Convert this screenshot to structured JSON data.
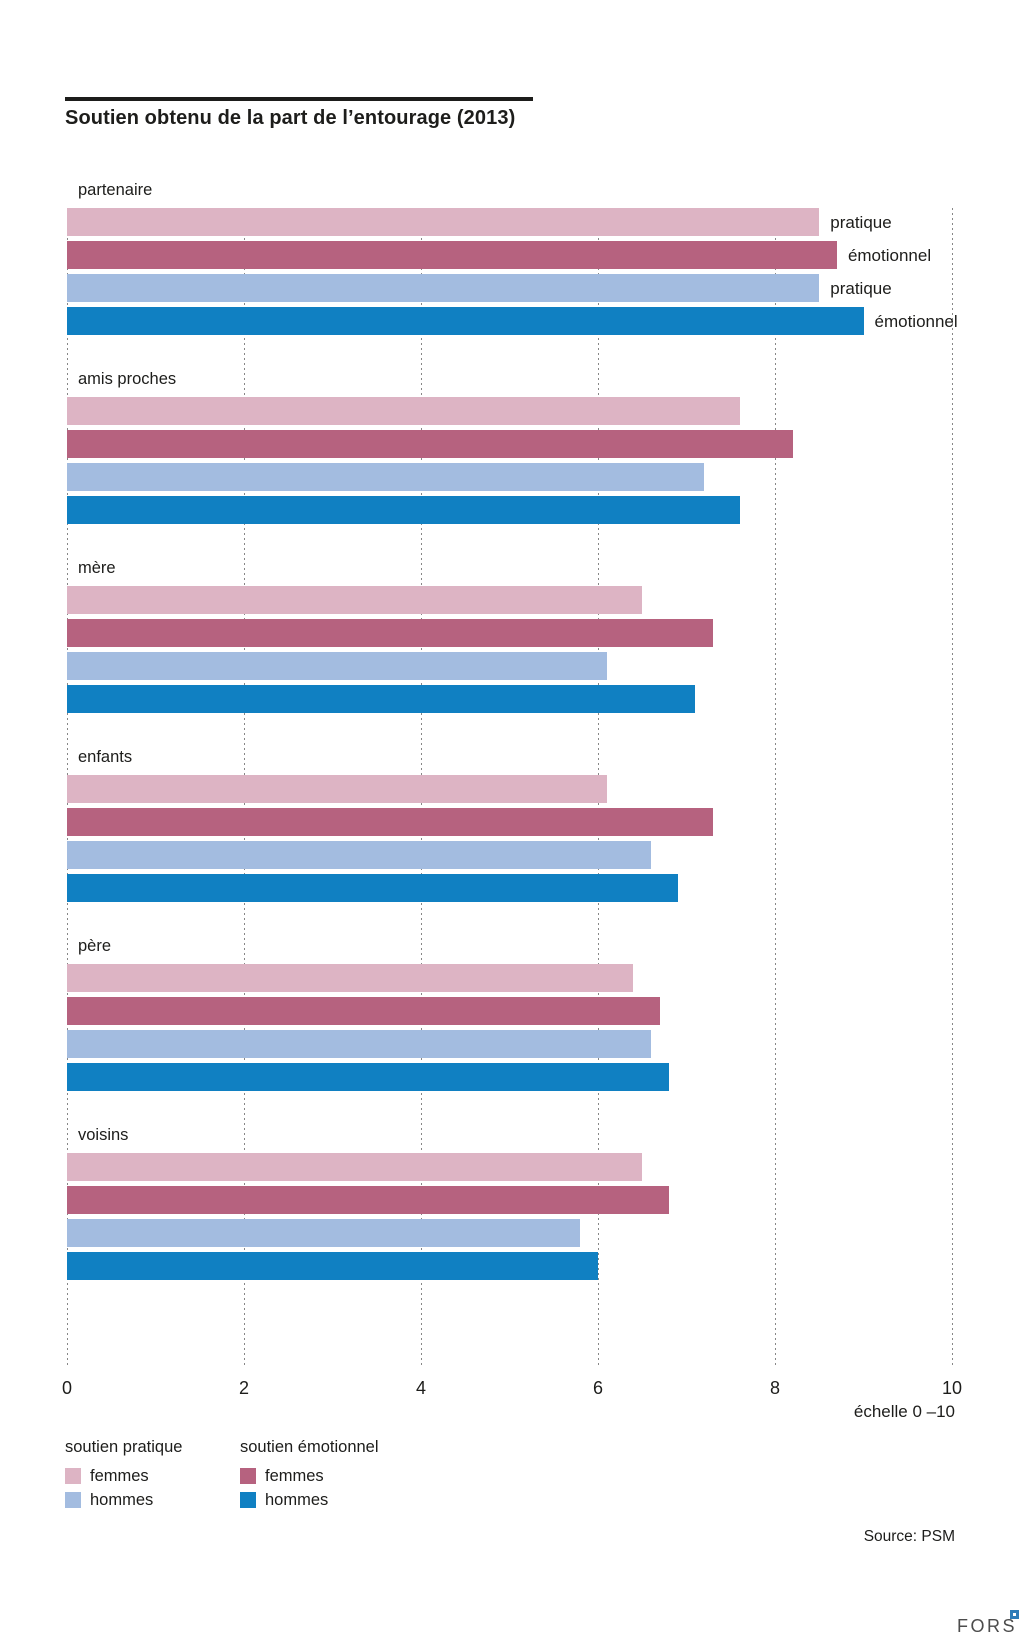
{
  "title": "Soutien obtenu de la part de l’entourage (2013)",
  "chart_data": {
    "type": "bar",
    "orientation": "horizontal",
    "categories": [
      "partenaire",
      "amis proches",
      "mère",
      "enfants",
      "père",
      "voisins"
    ],
    "series": [
      {
        "name": "soutien pratique femmes",
        "color": "#ddb4c4",
        "values": [
          8.5,
          7.6,
          6.5,
          6.1,
          6.4,
          6.5
        ]
      },
      {
        "name": "soutien émotionnel femmes",
        "color": "#b6627f",
        "values": [
          8.7,
          8.2,
          7.3,
          7.3,
          6.7,
          6.8
        ]
      },
      {
        "name": "soutien pratique hommes",
        "color": "#a3bce0",
        "values": [
          8.5,
          7.2,
          6.1,
          6.6,
          6.6,
          5.8
        ]
      },
      {
        "name": "soutien émotionnel hommes",
        "color": "#1080c2",
        "values": [
          9.0,
          7.6,
          7.1,
          6.9,
          6.8,
          6.0
        ]
      }
    ],
    "first_group_bar_labels": [
      "pratique",
      "émotionnel",
      "pratique",
      "émotionnel"
    ],
    "xlim": [
      0,
      10
    ],
    "x_ticks": [
      0,
      2,
      4,
      6,
      8,
      10
    ],
    "grid": "dotted vertical",
    "legend_position": "bottom-left"
  },
  "axis": {
    "scale_label": "échelle 0 –10"
  },
  "legend": {
    "col1_header": "soutien pratique",
    "col2_header": "soutien émotionnel",
    "femmes_label": "femmes",
    "hommes_label": "hommes"
  },
  "source": "Source: PSM",
  "logo_text": "FORS",
  "colors": {
    "grid": "#878787",
    "text": "#1d1d1b",
    "logo_gray": "#4c4c4c",
    "logo_blue": "#2e7cb8"
  }
}
